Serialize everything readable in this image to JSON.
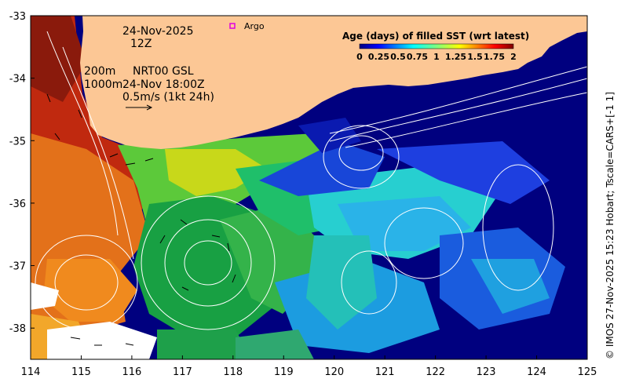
{
  "map": {
    "lon_range": [
      114,
      125
    ],
    "lat_range": [
      -38.5,
      -33
    ],
    "lon_ticks": [
      "114",
      "115",
      "116",
      "117",
      "118",
      "119",
      "120",
      "121",
      "122",
      "123",
      "124",
      "125"
    ],
    "lat_ticks": [
      "-33",
      "-34",
      "-35",
      "-36",
      "-37",
      "-38"
    ],
    "land_color": "#fcc795",
    "ocean_deep_color": "#00007f",
    "contour_color": "#ffffff"
  },
  "annotations": {
    "date": "24-Nov-2025",
    "time": "12Z",
    "depth_a": "200m",
    "product": "NRT00 GSL",
    "depth_b": "1000m",
    "valid_time": "24-Nov 18:00Z",
    "vector_scale": "0.5m/s (1kt 24h)",
    "argo_label": "Argo",
    "argo_marker_color": "#e000e0"
  },
  "colorbar": {
    "title": "Age (days) of filled SST (wrt latest)",
    "ticks": [
      "0",
      "0.25",
      "0.5",
      "0.75",
      "1",
      "1.25",
      "1.5",
      "1.75",
      "2"
    ],
    "range": [
      0,
      2
    ],
    "colormap": "jet"
  },
  "credit": "© IMOS 27-Nov-2025 15:23 Hobart; Tscale=CARS+[-1 1]"
}
